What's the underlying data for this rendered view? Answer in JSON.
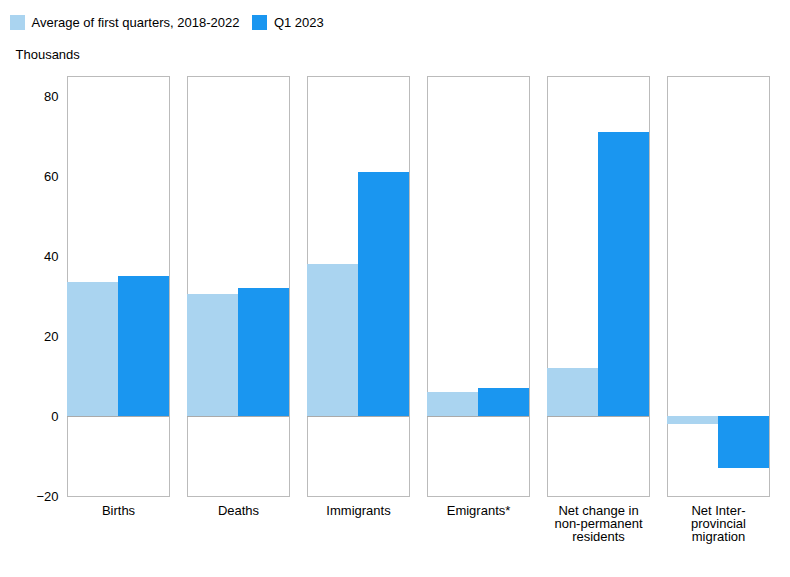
{
  "chart_data": {
    "type": "bar",
    "categories": [
      "Births",
      "Deaths",
      "Immigrants",
      "Emigrants*",
      "Net change in\nnon-permanent\nresidents",
      "Net Inter-\nprovincial\nmigration"
    ],
    "series": [
      {
        "name": "Average of first quarters, 2018-2022",
        "color": "#aad4f0",
        "values": [
          33.5,
          30.5,
          38.0,
          6.0,
          12.0,
          -2.0
        ]
      },
      {
        "name": "Q1 2023",
        "color": "#1a96f0",
        "values": [
          35.0,
          32.0,
          61.0,
          7.0,
          71.0,
          -13.0
        ]
      }
    ],
    "ylim": [
      -20,
      85
    ],
    "yticks": [
      -20,
      0,
      20,
      40,
      60,
      80
    ],
    "ylabel": "Thousands",
    "grid": false,
    "legend": "upper left"
  }
}
